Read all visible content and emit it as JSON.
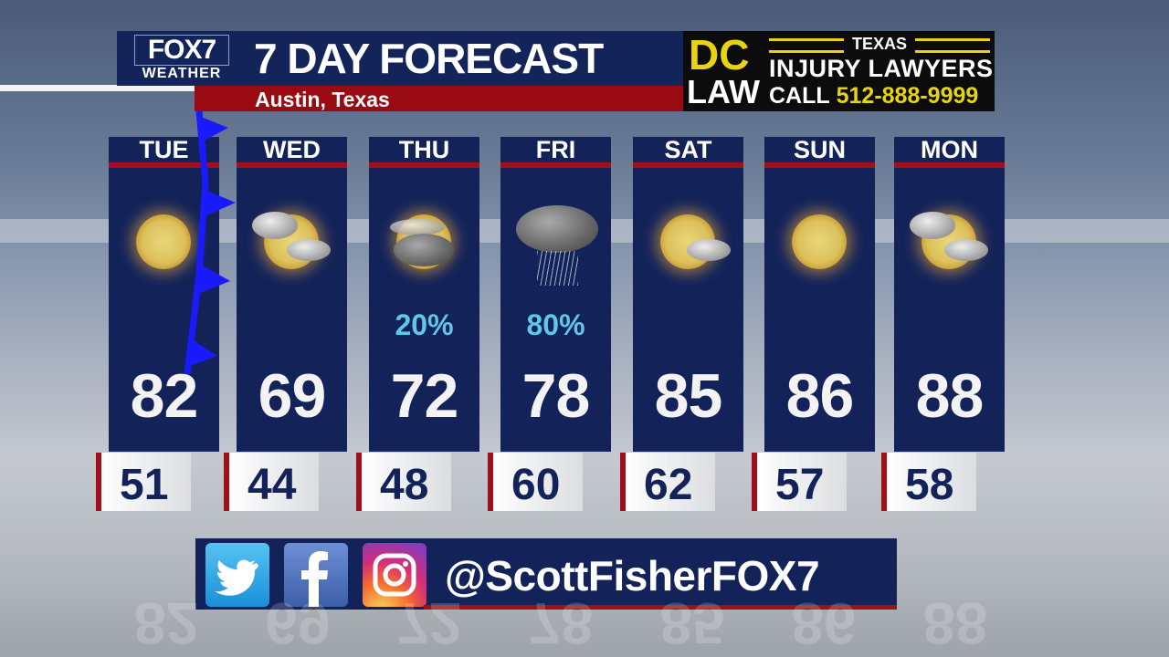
{
  "header": {
    "logo_top": "FOX7",
    "logo_bottom": "WEATHER",
    "title": "7 DAY FORECAST",
    "location": "Austin, Texas"
  },
  "ad": {
    "dc": "DC",
    "law": "LAW",
    "state": "TEXAS",
    "line1": "INJURY LAWYERS",
    "call": "CALL",
    "phone": "512-888-9999"
  },
  "days": [
    {
      "day": "TUE",
      "icon": "sunny",
      "pop": "",
      "high": "82",
      "low": "51"
    },
    {
      "day": "WED",
      "icon": "partly-cloudy",
      "pop": "",
      "high": "69",
      "low": "44"
    },
    {
      "day": "THU",
      "icon": "cloudy-thunder",
      "pop": "20%",
      "high": "72",
      "low": "48"
    },
    {
      "day": "FRI",
      "icon": "rain",
      "pop": "80%",
      "high": "78",
      "low": "60"
    },
    {
      "day": "SAT",
      "icon": "mostly-sunny",
      "pop": "",
      "high": "85",
      "low": "62"
    },
    {
      "day": "SUN",
      "icon": "sunny",
      "pop": "",
      "high": "86",
      "low": "57"
    },
    {
      "day": "MON",
      "icon": "partly-cloudy",
      "pop": "",
      "high": "88",
      "low": "58"
    }
  ],
  "social": {
    "handle": "@ScottFisherFOX7",
    "icons": [
      "twitter-icon",
      "facebook-icon",
      "instagram-icon"
    ]
  },
  "colors": {
    "navy": "#13235a",
    "red": "#a30e1c",
    "pop": "#5ec8e6",
    "ad_yellow": "#e8d40e",
    "cold_front": "#1a1aff"
  }
}
